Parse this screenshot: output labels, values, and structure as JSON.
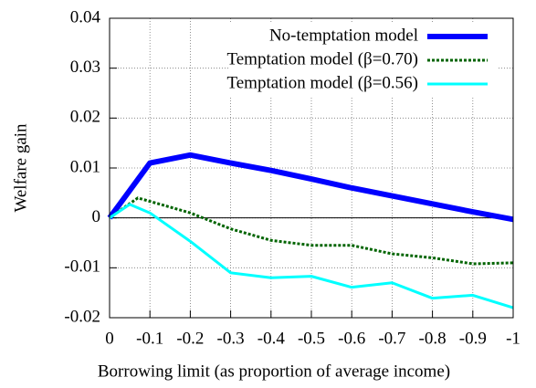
{
  "chart_data": {
    "type": "line",
    "xlabel": "Borrowing limit (as proportion of average income)",
    "ylabel": "Welfare gain",
    "xlim": [
      0,
      -1
    ],
    "xticks": [
      0,
      -0.1,
      -0.2,
      -0.3,
      -0.4,
      -0.5,
      -0.6,
      -0.7,
      -0.8,
      -0.9,
      -1
    ],
    "ylim": [
      -0.02,
      0.04
    ],
    "yticks": [
      0.04,
      0.03,
      0.02,
      0.01,
      0,
      -0.01,
      -0.02
    ],
    "grid": true,
    "legend": "top-right",
    "series": [
      {
        "name": "No-temptation model",
        "color": "#0000ff",
        "width": 6,
        "dash": "none",
        "x": [
          0,
          -0.1,
          -0.2,
          -0.3,
          -0.4,
          -0.5,
          -0.6,
          -0.7,
          -0.8,
          -0.9,
          -1
        ],
        "values": [
          0,
          0.011,
          0.0126,
          0.011,
          0.0095,
          0.0078,
          0.006,
          0.0044,
          0.0028,
          0.0012,
          -0.0003
        ]
      },
      {
        "name": "Temptation model (β=0.70)",
        "color": "#006400",
        "width": 3,
        "dash": "3,2",
        "x": [
          0,
          -0.07,
          -0.2,
          -0.3,
          -0.4,
          -0.5,
          -0.6,
          -0.7,
          -0.8,
          -0.9,
          -1
        ],
        "values": [
          0,
          0.004,
          0.001,
          -0.0022,
          -0.0045,
          -0.0055,
          -0.0055,
          -0.0072,
          -0.008,
          -0.0092,
          -0.009
        ]
      },
      {
        "name": "Temptation model (β=0.56)",
        "color": "#00ffff",
        "width": 3,
        "dash": "none",
        "x": [
          0,
          -0.05,
          -0.1,
          -0.2,
          -0.3,
          -0.4,
          -0.5,
          -0.6,
          -0.7,
          -0.8,
          -0.9,
          -1
        ],
        "values": [
          0,
          0.0027,
          0.001,
          -0.0047,
          -0.011,
          -0.012,
          -0.0117,
          -0.0139,
          -0.013,
          -0.0161,
          -0.0155,
          -0.018
        ]
      }
    ]
  }
}
